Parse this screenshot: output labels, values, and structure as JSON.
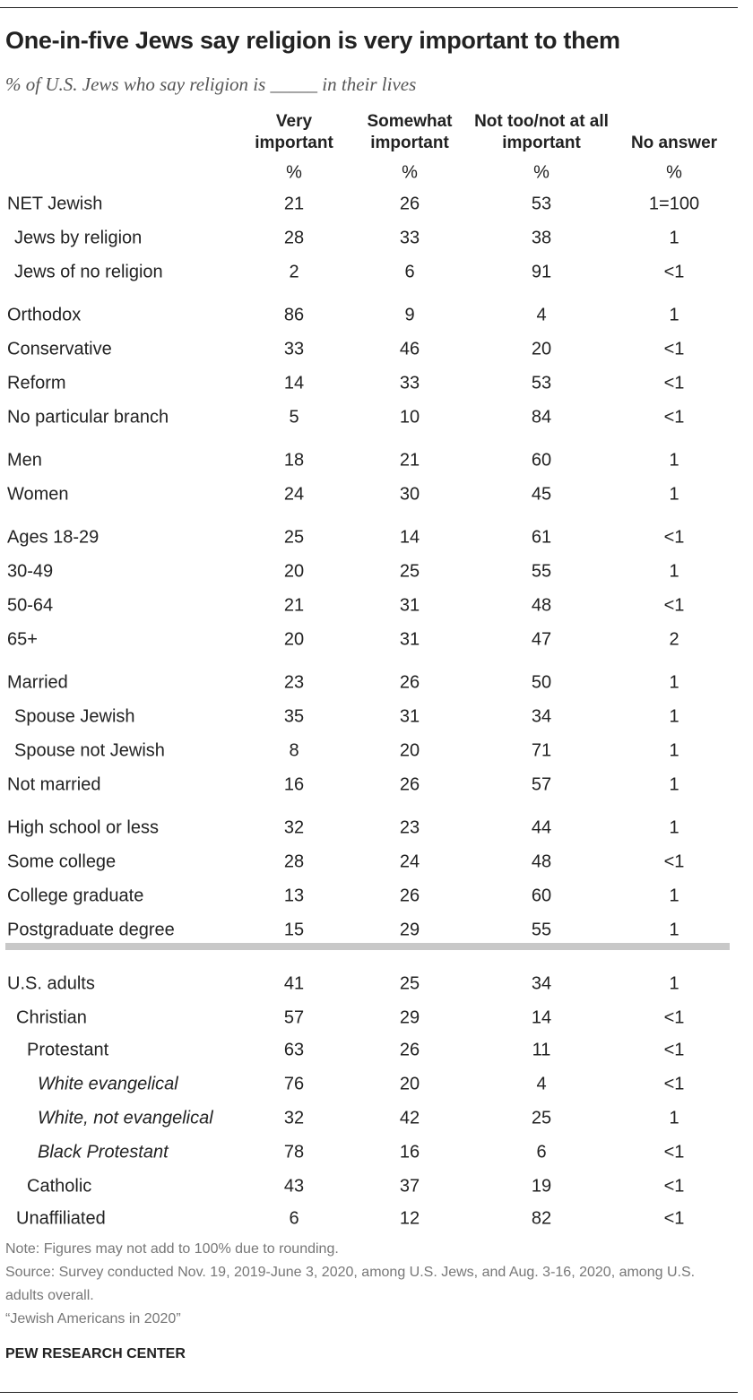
{
  "header": {
    "title": "One-in-five Jews say religion is very important to them",
    "subtitle": "% of U.S. Jews who say religion is _____ in their lives"
  },
  "table": {
    "columns": [
      {
        "name": "Very important",
        "unit": "%"
      },
      {
        "name": "Somewhat important",
        "unit": "%"
      },
      {
        "name": "Not too/not at all important",
        "unit": "%"
      },
      {
        "name": "No answer",
        "unit": "%"
      }
    ],
    "groups": [
      {
        "rows": [
          {
            "label": "NET Jewish",
            "values": [
              21,
              26,
              53,
              "1=100"
            ]
          },
          {
            "label": "Jews by religion",
            "values": [
              28,
              33,
              38,
              1
            ]
          },
          {
            "label": "Jews of no religion",
            "values": [
              2,
              6,
              91,
              "<1"
            ]
          }
        ]
      },
      {
        "rows": [
          {
            "label": "Orthodox",
            "values": [
              86,
              9,
              4,
              1
            ]
          },
          {
            "label": "Conservative",
            "values": [
              33,
              46,
              20,
              "<1"
            ]
          },
          {
            "label": "Reform",
            "values": [
              14,
              33,
              53,
              "<1"
            ]
          },
          {
            "label": "No particular branch",
            "values": [
              5,
              10,
              84,
              "<1"
            ]
          }
        ]
      },
      {
        "rows": [
          {
            "label": "Men",
            "values": [
              18,
              21,
              60,
              1
            ]
          },
          {
            "label": "Women",
            "values": [
              24,
              30,
              45,
              1
            ]
          }
        ]
      },
      {
        "rows": [
          {
            "label": "Ages 18-29",
            "values": [
              25,
              14,
              61,
              "<1"
            ]
          },
          {
            "label": "30-49",
            "values": [
              20,
              25,
              55,
              1
            ]
          },
          {
            "label": "50-64",
            "values": [
              21,
              31,
              48,
              "<1"
            ]
          },
          {
            "label": "65+",
            "values": [
              20,
              31,
              47,
              2
            ]
          }
        ]
      },
      {
        "rows": [
          {
            "label": "Married",
            "values": [
              23,
              26,
              50,
              1
            ]
          },
          {
            "label": "Spouse Jewish",
            "values": [
              35,
              31,
              34,
              1
            ]
          },
          {
            "label": "Spouse not Jewish",
            "values": [
              8,
              20,
              71,
              1
            ]
          },
          {
            "label": "Not married",
            "values": [
              16,
              26,
              57,
              1
            ]
          }
        ]
      },
      {
        "rows": [
          {
            "label": "High school or less",
            "values": [
              32,
              23,
              44,
              1
            ]
          },
          {
            "label": "Some college",
            "values": [
              28,
              24,
              48,
              "<1"
            ]
          },
          {
            "label": "College graduate",
            "values": [
              13,
              26,
              60,
              1
            ]
          },
          {
            "label": "Postgraduate degree",
            "values": [
              15,
              29,
              55,
              1
            ]
          }
        ]
      },
      {
        "rows": [
          {
            "label": "U.S. adults",
            "values": [
              41,
              25,
              34,
              1
            ]
          },
          {
            "label": "Christian",
            "values": [
              57,
              29,
              14,
              "<1"
            ]
          },
          {
            "label": "Protestant",
            "values": [
              63,
              26,
              11,
              "<1"
            ]
          },
          {
            "label": "White evangelical",
            "values": [
              76,
              20,
              4,
              "<1"
            ]
          },
          {
            "label": "White, not evangelical",
            "values": [
              32,
              42,
              25,
              1
            ]
          },
          {
            "label": "Black Protestant",
            "values": [
              78,
              16,
              6,
              "<1"
            ]
          },
          {
            "label": "Catholic",
            "values": [
              43,
              37,
              19,
              "<1"
            ]
          },
          {
            "label": "Unaffiliated",
            "values": [
              6,
              12,
              82,
              "<1"
            ]
          }
        ]
      }
    ]
  },
  "footer": {
    "note": "Note: Figures may not add to 100% due to rounding.",
    "source": "Source: Survey conducted Nov. 19, 2019-June 3, 2020, among U.S. Jews, and Aug. 3-16, 2020, among U.S. adults overall.",
    "report": "“Jewish Americans in 2020”",
    "brand": "PEW RESEARCH CENTER"
  }
}
